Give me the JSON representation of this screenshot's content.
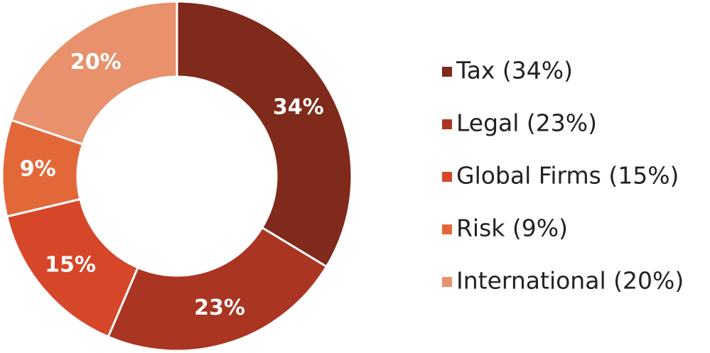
{
  "chart_data": {
    "type": "pie",
    "categories": [
      "Tax (34%)",
      "Legal (23%)",
      "Global Firms (15%)",
      "Risk (9%)",
      "International (20%)"
    ],
    "values": [
      34,
      23,
      15,
      9,
      20
    ],
    "value_labels": [
      "34%",
      "23%",
      "15%",
      "9%",
      "20%"
    ],
    "colors": [
      "#7f2a1a",
      "#a93522",
      "#d6472a",
      "#e2683a",
      "#e8916c"
    ],
    "legend": "right"
  }
}
